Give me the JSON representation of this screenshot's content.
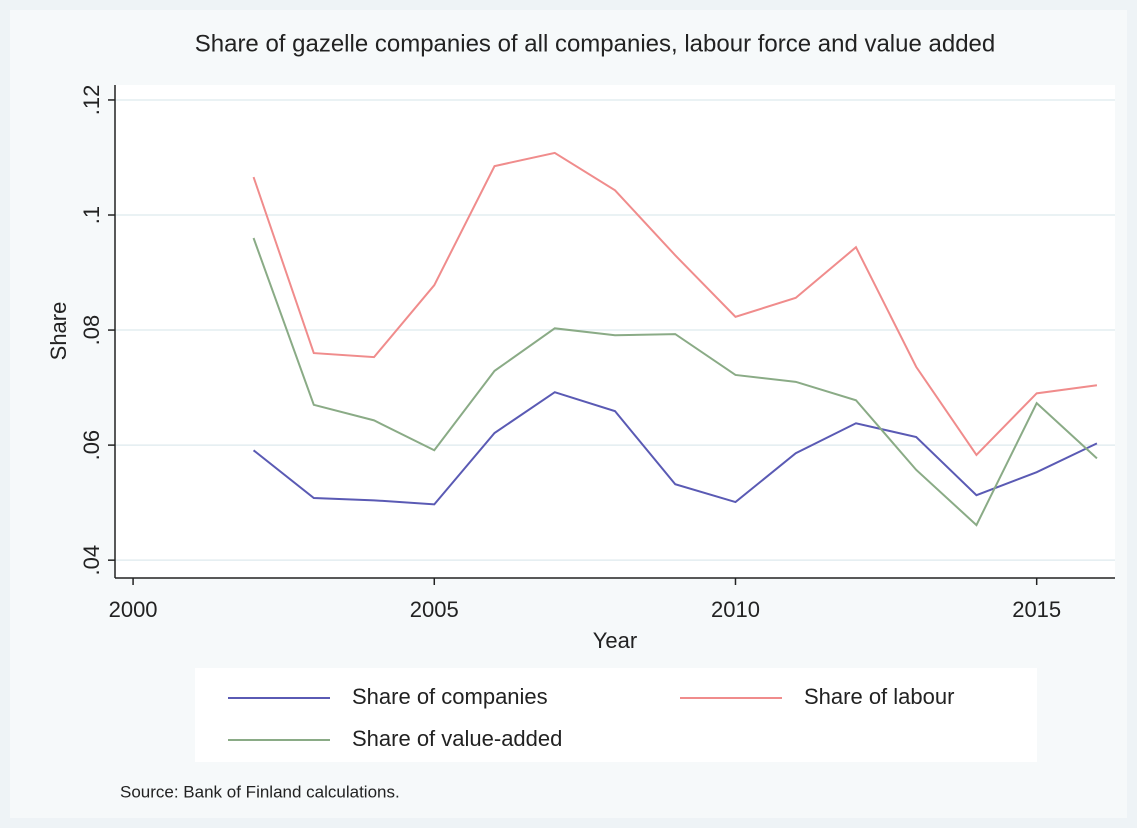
{
  "chart_data": {
    "type": "line",
    "title": "Share of gazelle companies of all companies, labour force and value added",
    "x_label": "Year",
    "y_label": "Share",
    "note": "Source: Bank of Finland calculations.",
    "x": [
      2002,
      2003,
      2004,
      2005,
      2006,
      2007,
      2008,
      2009,
      2010,
      2011,
      2012,
      2013,
      2014,
      2015,
      2016
    ],
    "series": [
      {
        "name": "Share of companies",
        "color": "#5a5ab4",
        "values": [
          0.0591,
          0.0508,
          0.0504,
          0.0497,
          0.0621,
          0.0692,
          0.0659,
          0.0532,
          0.0501,
          0.0586,
          0.0638,
          0.0614,
          0.0513,
          0.0553,
          0.0603
        ]
      },
      {
        "name": "Share of labour",
        "color": "#f08c8c",
        "values": [
          0.1066,
          0.076,
          0.0753,
          0.0878,
          0.1085,
          0.1108,
          0.1043,
          0.093,
          0.0823,
          0.0856,
          0.0944,
          0.0736,
          0.0583,
          0.069,
          0.0704
        ]
      },
      {
        "name": "Share of value-added",
        "color": "#8aab86",
        "values": [
          0.096,
          0.067,
          0.0643,
          0.0591,
          0.0729,
          0.0803,
          0.0791,
          0.0793,
          0.0722,
          0.071,
          0.0678,
          0.0557,
          0.0461,
          0.0673,
          0.0577
        ]
      }
    ],
    "xlim": [
      1999.7,
      2016.3
    ],
    "xticks": [
      2000,
      2005,
      2010,
      2015
    ],
    "ylim": [
      0.0369,
      0.1226
    ],
    "yticks": [
      {
        "value": 0.04,
        "label": ".04"
      },
      {
        "value": 0.06,
        "label": ".06"
      },
      {
        "value": 0.08,
        "label": ".08"
      },
      {
        "value": 0.1,
        "label": ".1"
      },
      {
        "value": 0.12,
        "label": ".12"
      }
    ],
    "grid": true,
    "legend": "bottom"
  }
}
